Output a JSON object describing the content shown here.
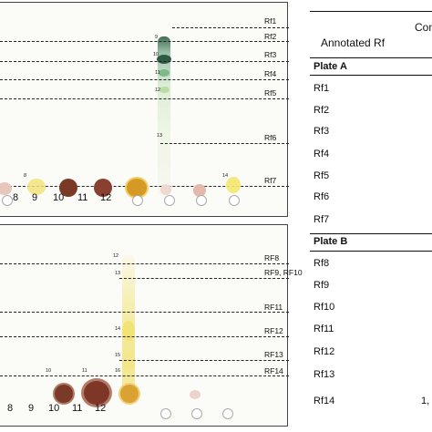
{
  "plate_a": {
    "rf_lines": [
      "Rf1",
      "Rf2",
      "Rf3",
      "Rf4",
      "Rf5",
      "Rf6",
      "Rf7"
    ],
    "band_numbers": [
      "9",
      "10",
      "11",
      "12",
      "13",
      "8",
      "14"
    ],
    "lane_labels": [
      "8",
      "9",
      "10",
      "11",
      "12"
    ]
  },
  "plate_b": {
    "rf_lines": [
      "RF8",
      "RF9, RF10",
      "RF11",
      "RF12",
      "RF13",
      "RF14"
    ],
    "band_numbers": [
      "12",
      "13",
      "14",
      "15",
      "16",
      "10",
      "11"
    ],
    "lane_labels": [
      "8",
      "9",
      "10",
      "11",
      "12"
    ]
  },
  "table": {
    "header_cut": "Com",
    "column_header": "Annotated Rf",
    "section_a": "Plate A",
    "rows_a": [
      "Rf1",
      "Rf2",
      "Rf3",
      "Rf4",
      "Rf5",
      "Rf6",
      "Rf7"
    ],
    "section_b": "Plate B",
    "rows_b": [
      "Rf8",
      "Rf9",
      "Rf10",
      "Rf11",
      "Rf12",
      "Rf13",
      "Rf14"
    ],
    "last_value_cut": "1,"
  }
}
